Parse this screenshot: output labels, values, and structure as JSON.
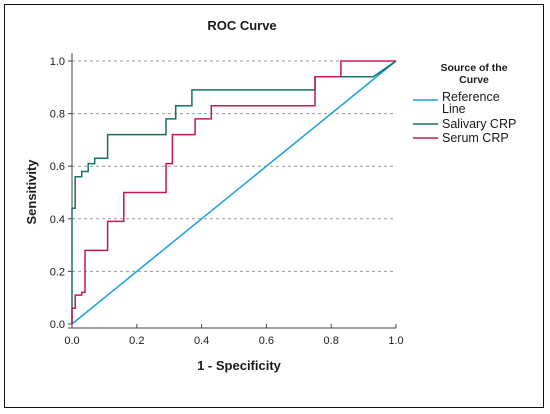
{
  "chart_data": {
    "type": "line",
    "title": "ROC Curve",
    "xlabel": "1 - Specificity",
    "ylabel": "Sensitivity",
    "xlim": [
      0,
      1
    ],
    "ylim": [
      0,
      1
    ],
    "x_ticks": [
      "0.0",
      "0.2",
      "0.4",
      "0.6",
      "0.8",
      "1.0"
    ],
    "y_ticks": [
      "0.0",
      "0.2",
      "0.4",
      "0.6",
      "0.8",
      "1.0"
    ],
    "grid": "horizontal dashed",
    "legend": {
      "title_line1": "Source of the",
      "title_line2": "Curve",
      "placement": "right"
    },
    "series": [
      {
        "key": "reference",
        "legend_line1": "Reference",
        "legend_line2": "Line",
        "color": "#1a9fdf",
        "x": [
          0,
          1
        ],
        "y": [
          0,
          1
        ]
      },
      {
        "key": "salivary",
        "legend_line1": "Salivary CRP",
        "legend_line2": "",
        "color": "#15706a",
        "x": [
          0,
          0,
          0.01,
          0.01,
          0.03,
          0.03,
          0.05,
          0.05,
          0.07,
          0.07,
          0.11,
          0.11,
          0.29,
          0.29,
          0.32,
          0.32,
          0.37,
          0.37,
          0.75,
          0.75,
          0.93,
          1
        ],
        "y": [
          0,
          0.44,
          0.44,
          0.56,
          0.56,
          0.58,
          0.58,
          0.61,
          0.61,
          0.63,
          0.63,
          0.72,
          0.72,
          0.78,
          0.78,
          0.83,
          0.83,
          0.89,
          0.89,
          0.94,
          0.94,
          1
        ]
      },
      {
        "key": "serum",
        "legend_line1": "Serum CRP",
        "legend_line2": "",
        "color": "#c2185b",
        "x": [
          0,
          0,
          0.01,
          0.01,
          0.03,
          0.03,
          0.04,
          0.04,
          0.11,
          0.11,
          0.16,
          0.16,
          0.29,
          0.29,
          0.31,
          0.31,
          0.38,
          0.38,
          0.43,
          0.43,
          0.75,
          0.75,
          0.83,
          0.83,
          1
        ],
        "y": [
          0,
          0.06,
          0.06,
          0.11,
          0.11,
          0.12,
          0.12,
          0.28,
          0.28,
          0.39,
          0.39,
          0.5,
          0.5,
          0.61,
          0.61,
          0.72,
          0.72,
          0.78,
          0.78,
          0.83,
          0.83,
          0.94,
          0.94,
          1,
          1
        ]
      }
    ]
  }
}
